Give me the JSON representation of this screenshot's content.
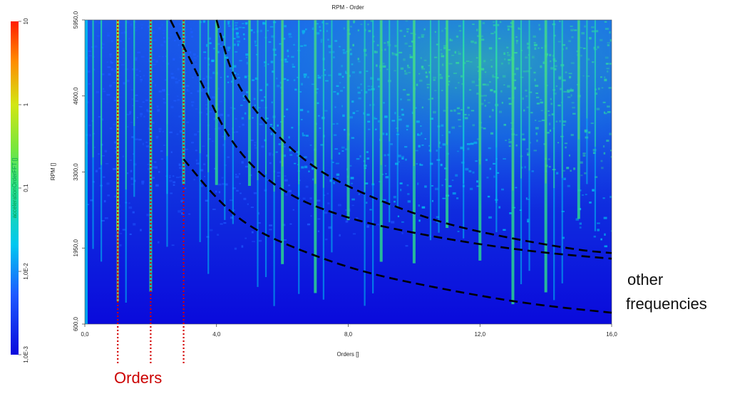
{
  "chart_data": {
    "type": "heatmap",
    "title": "RPM - Order",
    "xlabel": "Orders []",
    "ylabel": "RPM []",
    "colorbar_label": "accelerationOrderFFT []",
    "xlim": [
      0,
      16
    ],
    "ylim": [
      600,
      5950
    ],
    "x_ticks": [
      "0,0",
      "4,0",
      "8,0",
      "12,0",
      "16,0"
    ],
    "y_ticks": [
      "600,0",
      "1950,0",
      "3300,0",
      "4600,0",
      "5950,0"
    ],
    "colorbar": {
      "scale": "log",
      "range": [
        0.001,
        10
      ],
      "ticks": [
        "1,0E-3",
        "1,0E-2",
        "0,1",
        "1",
        "10"
      ],
      "colors": [
        "#0a0adc",
        "#1e5aff",
        "#00c8f0",
        "#2de08c",
        "#78e63c",
        "#d2e614",
        "#ff8c00",
        "#ff1e00"
      ]
    },
    "background_color": "#0a0adc",
    "order_lines": [
      1,
      2,
      3
    ],
    "annotations": {
      "orders_label": "Orders",
      "other_label_line1": "other",
      "other_label_line2": "frequencies"
    },
    "dashed_curves": [
      {
        "points": [
          [
            2.6,
            5950
          ],
          [
            3.5,
            4900
          ],
          [
            4.5,
            3700
          ],
          [
            6,
            2900
          ],
          [
            8,
            2450
          ],
          [
            10,
            2200
          ],
          [
            12,
            2000
          ],
          [
            14,
            1850
          ],
          [
            16,
            1750
          ]
        ]
      },
      {
        "points": [
          [
            4.0,
            5950
          ],
          [
            4.5,
            4900
          ],
          [
            5.5,
            4100
          ],
          [
            7,
            3300
          ],
          [
            9,
            2750
          ],
          [
            11,
            2350
          ],
          [
            13,
            2100
          ],
          [
            15,
            1900
          ],
          [
            16,
            1850
          ]
        ]
      },
      {
        "points": [
          [
            3.0,
            3500
          ],
          [
            4.0,
            2800
          ],
          [
            5,
            2300
          ],
          [
            6.5,
            1900
          ],
          [
            8.5,
            1500
          ],
          [
            11,
            1200
          ],
          [
            13.5,
            950
          ],
          [
            16,
            800
          ]
        ]
      }
    ]
  }
}
